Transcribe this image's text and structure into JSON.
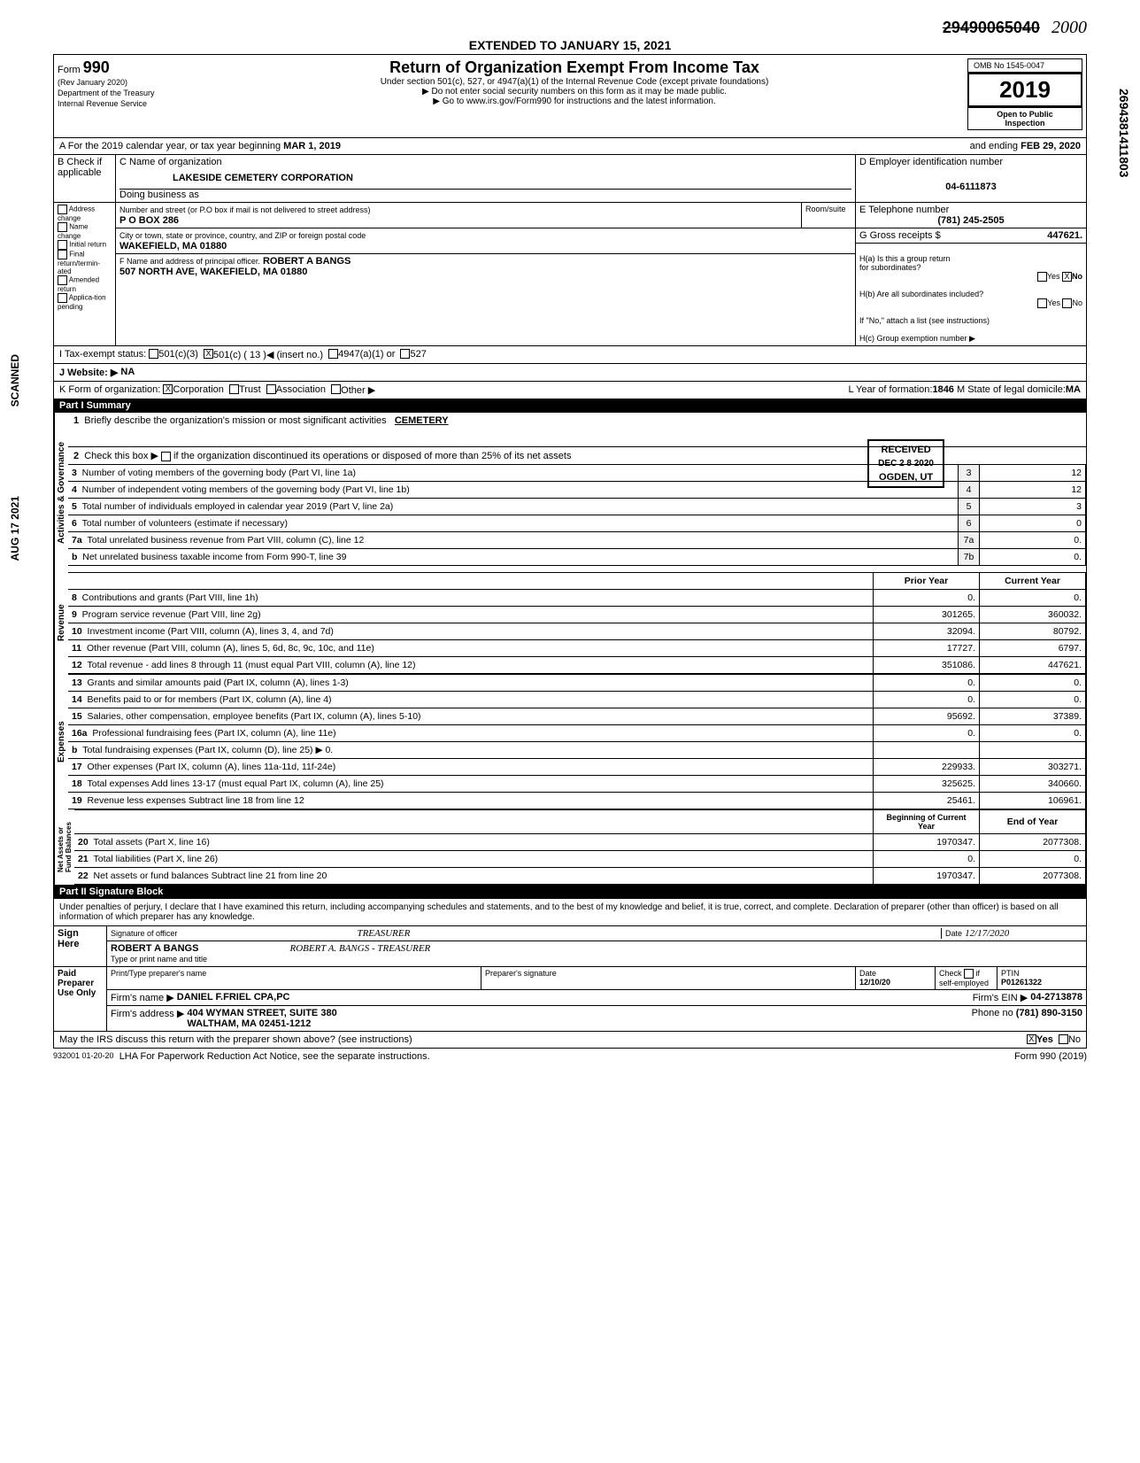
{
  "top_strike": "29490065040",
  "ext": "EXTENDED TO JANUARY 15, 2021",
  "form": {
    "no": "990",
    "rev": "(Rev January 2020)",
    "dept": "Department of the Treasury\nInternal Revenue Service",
    "title": "Return of Organization Exempt From Income Tax",
    "sub1": "Under section 501(c), 527, or 4947(a)(1) of the Internal Revenue Code (except private foundations)",
    "sub2": "▶ Do not enter social security numbers on this form as it may be made public.",
    "sub3": "▶ Go to www.irs.gov/Form990 for instructions and the latest information.",
    "omb": "OMB No 1545-0047",
    "year": "2019",
    "open": "Open to Public\nInspection"
  },
  "lineA": {
    "prefix": "A For the 2019 calendar year, or tax year beginning",
    "begin": "MAR 1, 2019",
    "mid": "and ending",
    "end": "FEB 29, 2020"
  },
  "B": {
    "hdr": "B Check if\napplicable",
    "opts": [
      "Address change",
      "Name change",
      "Initial return",
      "Final return/termin-ated",
      "Amended return",
      "Applica-tion pending"
    ]
  },
  "C": {
    "hdr": "C Name of organization",
    "name": "LAKESIDE CEMETERY CORPORATION",
    "dba_lbl": "Doing business as",
    "addr_lbl": "Number and street (or P.O box if mail is not delivered to street address)",
    "addr": "P O BOX 286",
    "room_lbl": "Room/suite",
    "city_lbl": "City or town, state or province, country, and ZIP or foreign postal code",
    "city": "WAKEFIELD, MA  01880",
    "f_lbl": "F Name and address of principal officer.",
    "f_name": "ROBERT A BANGS",
    "f_addr": "507 NORTH AVE, WAKEFIELD, MA  01880"
  },
  "D": {
    "hdr": "D Employer identification number",
    "val": "04-6111873"
  },
  "E": {
    "hdr": "E Telephone number",
    "val": "(781) 245-2505"
  },
  "G": {
    "hdr": "G Gross receipts $",
    "val": "447621."
  },
  "H": {
    "a": "H(a) Is this a group return\n     for subordinates?",
    "a_no": "No",
    "b": "H(b) Are all subordinates included?",
    "b_note": "If \"No,\" attach a list (see instructions)",
    "c": "H(c) Group exemption number ▶"
  },
  "I": {
    "lbl": "I Tax-exempt status:",
    "sel": "501(c) ( 13 )◀ (insert no.)"
  },
  "J": {
    "lbl": "J Website: ▶",
    "val": "NA"
  },
  "K": {
    "lbl": "K Form of organization:",
    "corp": "Corporation"
  },
  "L": {
    "lbl": "L Year of formation:",
    "val": "1846",
    "state_lbl": "M State of legal domicile:",
    "state": "MA"
  },
  "partI": "Part I  Summary",
  "mission_lbl": "Briefly describe the organization's mission or most significant activities",
  "mission": "CEMETERY",
  "disc_lbl": "if the organization discontinued its operations or disposed of more than 25% of its net assets",
  "stamp": {
    "r1": "RECEIVED",
    "r2": "DEC 2 8 2020",
    "r3": "OGDEN, UT"
  },
  "govLines": [
    {
      "n": "3",
      "t": "Number of voting members of the governing body (Part VI, line 1a)",
      "b": "3",
      "v": "12"
    },
    {
      "n": "4",
      "t": "Number of independent voting members of the governing body (Part VI, line 1b)",
      "b": "4",
      "v": "12"
    },
    {
      "n": "5",
      "t": "Total number of individuals employed in calendar year 2019 (Part V, line 2a)",
      "b": "5",
      "v": "3"
    },
    {
      "n": "6",
      "t": "Total number of volunteers (estimate if necessary)",
      "b": "6",
      "v": "0"
    },
    {
      "n": "7a",
      "t": "Total unrelated business revenue from Part VIII, column (C), line 12",
      "b": "7a",
      "v": "0."
    },
    {
      "n": "b",
      "t": "Net unrelated business taxable income from Form 990-T, line 39",
      "b": "7b",
      "v": "0."
    }
  ],
  "pyHdr": "Prior Year",
  "cyHdr": "Current Year",
  "revLines": [
    {
      "n": "8",
      "t": "Contributions and grants (Part VIII, line 1h)",
      "py": "0.",
      "cy": "0."
    },
    {
      "n": "9",
      "t": "Program service revenue (Part VIII, line 2g)",
      "py": "301265.",
      "cy": "360032."
    },
    {
      "n": "10",
      "t": "Investment income (Part VIII, column (A), lines 3, 4, and 7d)",
      "py": "32094.",
      "cy": "80792."
    },
    {
      "n": "11",
      "t": "Other revenue (Part VIII, column (A), lines 5, 6d, 8c, 9c, 10c, and 11e)",
      "py": "17727.",
      "cy": "6797."
    },
    {
      "n": "12",
      "t": "Total revenue - add lines 8 through 11 (must equal Part VIII, column (A), line 12)",
      "py": "351086.",
      "cy": "447621."
    }
  ],
  "expLines": [
    {
      "n": "13",
      "t": "Grants and similar amounts paid (Part IX, column (A), lines 1-3)",
      "py": "0.",
      "cy": "0."
    },
    {
      "n": "14",
      "t": "Benefits paid to or for members (Part IX, column (A), line 4)",
      "py": "0.",
      "cy": "0."
    },
    {
      "n": "15",
      "t": "Salaries, other compensation, employee benefits (Part IX, column (A), lines 5-10)",
      "py": "95692.",
      "cy": "37389."
    },
    {
      "n": "16a",
      "t": "Professional fundraising fees (Part IX, column (A), line 11e)",
      "py": "0.",
      "cy": "0."
    },
    {
      "n": "b",
      "t": "Total fundraising expenses (Part IX, column (D), line 25)  ▶        0.",
      "py": "",
      "cy": ""
    },
    {
      "n": "17",
      "t": "Other expenses (Part IX, column (A), lines 11a-11d, 11f-24e)",
      "py": "229933.",
      "cy": "303271."
    },
    {
      "n": "18",
      "t": "Total expenses Add lines 13-17 (must equal Part IX, column (A), line 25)",
      "py": "325625.",
      "cy": "340660."
    },
    {
      "n": "19",
      "t": "Revenue less expenses Subtract line 18 from line 12",
      "py": "25461.",
      "cy": "106961."
    }
  ],
  "balHdr1": "Beginning of Current Year",
  "balHdr2": "End of Year",
  "balLines": [
    {
      "n": "20",
      "t": "Total assets (Part X, line 16)",
      "py": "1970347.",
      "cy": "2077308."
    },
    {
      "n": "21",
      "t": "Total liabilities (Part X, line 26)",
      "py": "0.",
      "cy": "0."
    },
    {
      "n": "22",
      "t": "Net assets or fund balances Subtract line 21 from line 20",
      "py": "1970347.",
      "cy": "2077308."
    }
  ],
  "partII": "Part II  Signature Block",
  "perjury": "Under penalties of perjury, I declare that I have examined this return, including accompanying schedules and statements, and to the best of my knowledge and belief, it is true, correct, and complete. Declaration of preparer (other than officer) is based on all information of which preparer has any knowledge.",
  "sign": {
    "here": "Sign\nHere",
    "sig_lbl": "Signature of officer",
    "sig_hand": "TREASURER",
    "date_lbl": "Date",
    "date_hand": "12/17/2020",
    "name_lbl": "Type or print name and title",
    "name": "ROBERT A BANGS",
    "name_hand": "ROBERT A. BANGS - TREASURER"
  },
  "paid": {
    "hdr": "Paid\nPreparer\nUse Only",
    "prep_lbl": "Print/Type preparer's name",
    "psig_lbl": "Preparer's signature",
    "pdate": "12/10/20",
    "self": "self-employed",
    "ptin_lbl": "PTIN",
    "ptin": "P01261322",
    "firm_lbl": "Firm's name ▶",
    "firm": "DANIEL F.FRIEL CPA,PC",
    "ein_lbl": "Firm's EIN ▶",
    "ein": "04-2713878",
    "faddr_lbl": "Firm's address ▶",
    "faddr": "404 WYMAN STREET, SUITE 380\nWALTHAM, MA 02451-1212",
    "phone_lbl": "Phone no",
    "phone": "(781) 890-3150"
  },
  "discuss": "May the IRS discuss this return with the preparer shown above? (see instructions)",
  "discuss_yes": "Yes",
  "lha": "LHA For Paperwork Reduction Act Notice, see the separate instructions.",
  "formcode": "932001 01-20-20",
  "formfoot": "Form 990 (2019)",
  "side_scanned": "SCANNED",
  "side_date": "AUG 17 2021",
  "side_code": "2694381411803"
}
